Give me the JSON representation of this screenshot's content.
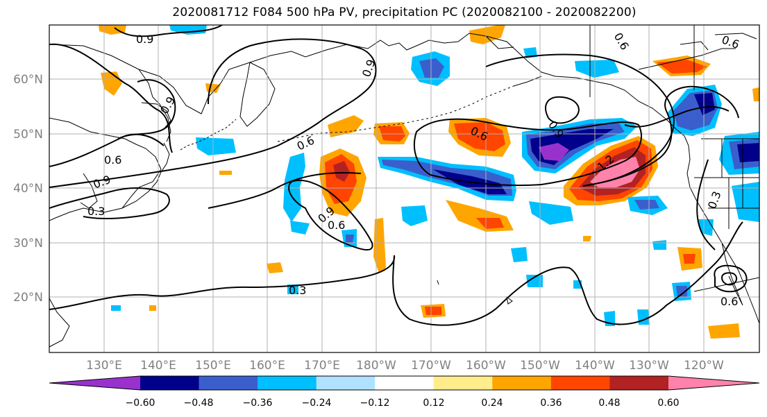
{
  "title": "2020081712 F084 500 hPa PV, precipitation PC (2020082100 - 2020082200)",
  "lat_labels": [
    "60°N",
    "50°N",
    "40°N",
    "30°N",
    "20°N"
  ],
  "lon_labels": [
    "130°E",
    "140°E",
    "150°E",
    "160°E",
    "170°E",
    "180°W",
    "170°W",
    "160°W",
    "150°W",
    "140°W",
    "130°W",
    "120°W"
  ],
  "contour_labels": [
    "0.9",
    "0.9",
    "0.9",
    "0.6",
    "0.6",
    "0.9",
    "0.3",
    "0.6",
    "0.9",
    "0.6",
    "0.3",
    "0.6",
    "0.9",
    "1.2",
    "0.6",
    "0.3",
    "0.6"
  ],
  "colorbar": {
    "ticks": [
      "−0.60",
      "−0.48",
      "−0.36",
      "−0.24",
      "−0.12",
      "0.12",
      "0.24",
      "0.36",
      "0.48",
      "0.60"
    ],
    "colors": [
      "#9932cc",
      "#00008b",
      "#3a5fcd",
      "#00bfff",
      "#b0e2ff",
      "#ffffff",
      "#ffec8b",
      "#ffa500",
      "#ff4500",
      "#b22222",
      "#ff82ab"
    ]
  },
  "colors": {
    "land": "#000000",
    "grid": "#b0b0b0",
    "contour": "#000000"
  }
}
